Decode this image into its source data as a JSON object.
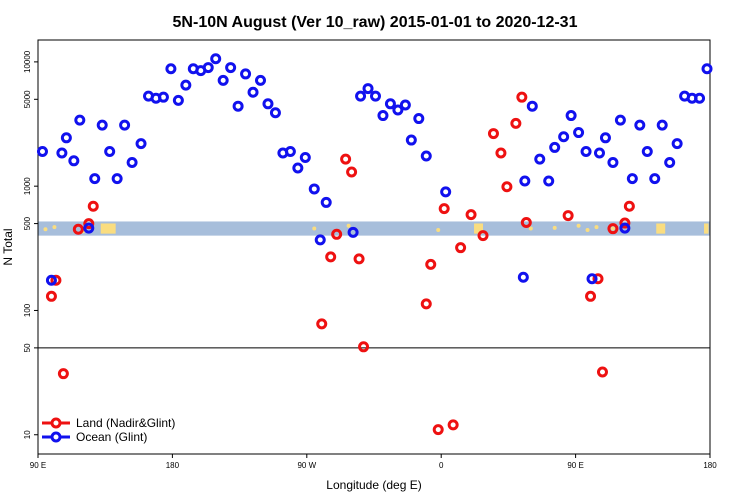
{
  "chart_data": {
    "type": "scatter",
    "title": "5N-10N August (Ver 10_raw)   2015-01-01 to 2020-12-31",
    "xlabel": "Longitude (deg E)",
    "ylabel": "N Total",
    "x_scale": "longitude from 90 E eastward to 180, then 90 W, 0, 90 E, 180 (wraps)",
    "xlim": [
      0,
      450
    ],
    "y_scale": "log",
    "ylim": [
      7,
      15000
    ],
    "x_ticks": [
      {
        "pos": 0,
        "label": "90 E"
      },
      {
        "pos": 90,
        "label": "180"
      },
      {
        "pos": 180,
        "label": "90 W"
      },
      {
        "pos": 270,
        "label": "0"
      },
      {
        "pos": 360,
        "label": "90 E"
      },
      {
        "pos": 450,
        "label": "180"
      }
    ],
    "y_ticks": [
      {
        "value": 10,
        "label": "10"
      },
      {
        "value": 50,
        "label": "50"
      },
      {
        "value": 100,
        "label": "100"
      },
      {
        "value": 500,
        "label": "500"
      },
      {
        "value": 1000,
        "label": "1000"
      },
      {
        "value": 5000,
        "label": "5000"
      },
      {
        "value": 10000,
        "label": "10000"
      }
    ],
    "reference_lines": [
      {
        "value": 50,
        "style": "horizontal line"
      },
      {
        "value": 400,
        "value_to": 520,
        "style": "land/ocean mask band"
      }
    ],
    "legend": {
      "position": "bottom-left"
    },
    "series": [
      {
        "name": "Land (Nadir&Glint)",
        "color": "#ee1111",
        "points": [
          [
            9,
            130
          ],
          [
            12,
            175
          ],
          [
            17,
            31
          ],
          [
            27,
            450
          ],
          [
            34,
            500
          ],
          [
            37,
            690
          ],
          [
            190,
            78
          ],
          [
            196,
            270
          ],
          [
            200,
            410
          ],
          [
            206,
            1650
          ],
          [
            210,
            1300
          ],
          [
            215,
            260
          ],
          [
            218,
            51
          ],
          [
            260,
            113
          ],
          [
            263,
            235
          ],
          [
            268,
            11
          ],
          [
            272,
            660
          ],
          [
            278,
            12
          ],
          [
            283,
            320
          ],
          [
            290,
            590
          ],
          [
            298,
            400
          ],
          [
            305,
            2650
          ],
          [
            310,
            1850
          ],
          [
            314,
            990
          ],
          [
            320,
            3200
          ],
          [
            324,
            5200
          ],
          [
            327,
            510
          ],
          [
            355,
            580
          ],
          [
            370,
            130
          ],
          [
            375,
            180
          ],
          [
            378,
            32
          ],
          [
            385,
            455
          ],
          [
            393,
            505
          ],
          [
            396,
            690
          ]
        ]
      },
      {
        "name": "Ocean (Glint)",
        "color": "#1111ee",
        "points": [
          [
            3,
            1900
          ],
          [
            9,
            175
          ],
          [
            16,
            1850
          ],
          [
            19,
            2450
          ],
          [
            24,
            1600
          ],
          [
            28,
            3400
          ],
          [
            34,
            460
          ],
          [
            38,
            1150
          ],
          [
            43,
            3100
          ],
          [
            48,
            1900
          ],
          [
            53,
            1150
          ],
          [
            58,
            3100
          ],
          [
            63,
            1550
          ],
          [
            69,
            2200
          ],
          [
            74,
            5300
          ],
          [
            79,
            5100
          ],
          [
            84,
            5200
          ],
          [
            89,
            8800
          ],
          [
            94,
            4900
          ],
          [
            99,
            6500
          ],
          [
            104,
            8800
          ],
          [
            109,
            8500
          ],
          [
            114,
            9000
          ],
          [
            119,
            10600
          ],
          [
            124,
            7100
          ],
          [
            129,
            9000
          ],
          [
            134,
            4400
          ],
          [
            139,
            8000
          ],
          [
            144,
            5700
          ],
          [
            149,
            7100
          ],
          [
            154,
            4600
          ],
          [
            159,
            3900
          ],
          [
            164,
            1850
          ],
          [
            169,
            1900
          ],
          [
            174,
            1400
          ],
          [
            179,
            1700
          ],
          [
            185,
            950
          ],
          [
            189,
            370
          ],
          [
            193,
            740
          ],
          [
            211,
            425
          ],
          [
            216,
            5300
          ],
          [
            221,
            6100
          ],
          [
            226,
            5300
          ],
          [
            231,
            3700
          ],
          [
            236,
            4600
          ],
          [
            241,
            4100
          ],
          [
            246,
            4500
          ],
          [
            250,
            2350
          ],
          [
            255,
            3500
          ],
          [
            260,
            1750
          ],
          [
            273,
            900
          ],
          [
            325,
            185
          ],
          [
            326,
            1100
          ],
          [
            331,
            4400
          ],
          [
            336,
            1650
          ],
          [
            342,
            1100
          ],
          [
            346,
            2050
          ],
          [
            352,
            2500
          ],
          [
            357,
            3700
          ],
          [
            362,
            2700
          ],
          [
            367,
            1900
          ],
          [
            371,
            180
          ],
          [
            376,
            1850
          ],
          [
            380,
            2450
          ],
          [
            385,
            1550
          ],
          [
            390,
            3400
          ],
          [
            393,
            460
          ],
          [
            398,
            1150
          ],
          [
            403,
            3100
          ],
          [
            408,
            1900
          ],
          [
            413,
            1150
          ],
          [
            418,
            3100
          ],
          [
            423,
            1550
          ],
          [
            428,
            2200
          ],
          [
            433,
            5300
          ],
          [
            438,
            5100
          ],
          [
            443,
            5100
          ],
          [
            448,
            8800
          ]
        ]
      }
    ]
  }
}
